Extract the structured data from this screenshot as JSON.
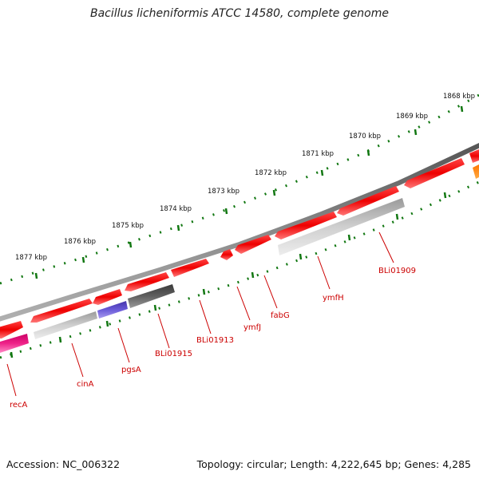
{
  "title": "Bacillus licheniformis ATCC 14580, complete genome",
  "footer": {
    "accession": "Accession: NC_006322",
    "summary": "Topology: circular; Length: 4,222,645 bp; Genes: 4,285"
  },
  "colors": {
    "gene_red": "#ee1111",
    "gene_gray": "#c8c8c8",
    "gene_dark": "#5a5a5a",
    "gene_purple": "#6655cc",
    "gene_pink": "#ee2288",
    "gene_orange": "#ff8800",
    "backbone": "#777777",
    "ticks": "#117711",
    "labels": "#cc0000"
  },
  "scale_labels": [
    "1868 kbp",
    "1869 kbp",
    "1870 kbp",
    "1871 kbp",
    "1872 kbp",
    "1873 kbp",
    "1874 kbp",
    "1875 kbp",
    "1876 kbp",
    "1877 kbp"
  ],
  "gene_labels": [
    "recA",
    "cinA",
    "pgsA",
    "BLi01915",
    "BLi01913",
    "ymfJ",
    "fabG",
    "ymfH",
    "BLi01909"
  ]
}
